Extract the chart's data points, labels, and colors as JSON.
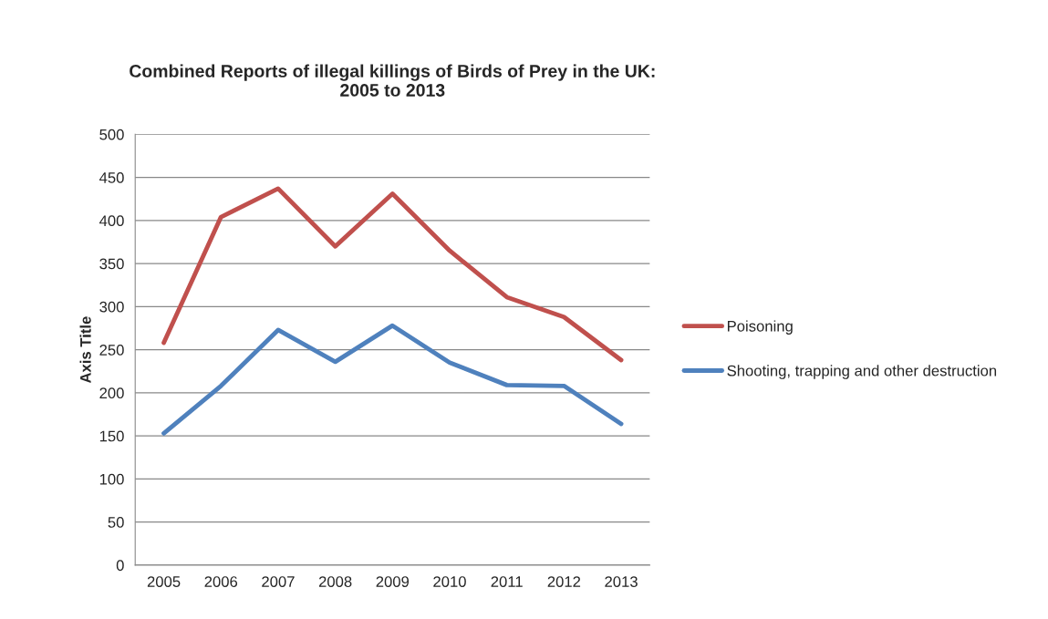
{
  "chart_data": {
    "type": "line",
    "title": "Combined Reports of illegal killings of Birds of Prey in the UK:\n2005 to 2013",
    "ylabel": "Axis Title",
    "categories": [
      "2005",
      "2006",
      "2007",
      "2008",
      "2009",
      "2010",
      "2011",
      "2012",
      "2013"
    ],
    "series": [
      {
        "name": "Poisoning",
        "color": "#c0504d",
        "values": [
          258,
          404,
          437,
          370,
          431,
          365,
          311,
          288,
          238
        ]
      },
      {
        "name": "Shooting, trapping and other destruction",
        "color": "#4f81bd",
        "values": [
          153,
          208,
          273,
          236,
          278,
          235,
          209,
          208,
          164
        ]
      }
    ],
    "ylim": [
      0,
      500
    ],
    "yticks": [
      0,
      50,
      100,
      150,
      200,
      250,
      300,
      350,
      400,
      450,
      500
    ],
    "grid": "y",
    "legend": "right",
    "marker": "none",
    "line_style": "solid"
  }
}
